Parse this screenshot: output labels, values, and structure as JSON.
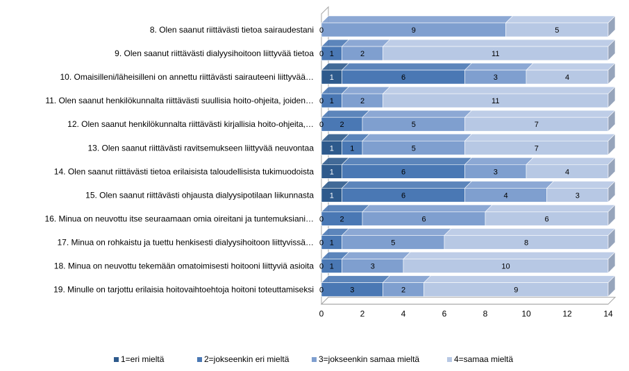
{
  "chart_data": {
    "type": "bar",
    "orientation": "horizontal",
    "stacked": true,
    "three_d": true,
    "categories": [
      "8. Olen saanut riittävästi tietoa sairaudestani",
      "9. Olen saanut riittävästi dialyysihoitoon liittyvää tietoa",
      "10. Omaisilleni/läheisilleni on annettu riittävästi sairauteeni liittyvää…",
      "11. Olen saanut henkilökunnalta riittävästi suullisia hoito-ohjeita, joiden…",
      "12. Olen saanut henkilökunnalta riittävästi kirjallisia hoito-ohjeita,…",
      "13. Olen saanut riittävästi ravitsemukseen liittyvää neuvontaa",
      "14. Olen saanut riittävästi tietoa erilaisista taloudellisista tukimuodoista",
      "15. Olen saanut riittävästi ohjausta dialyysipotilaan liikunnasta",
      "16. Minua on neuvottu itse seuraamaan omia oireitani ja tuntemuksiani…",
      "17. Minua on rohkaistu ja tuettu henkisesti dialyysihoitoon liittyvissä…",
      "18. Minua on neuvottu tekemään omatoimisesti hoitooni liittyviä asioita",
      "19. Minulle on tarjottu erilaisia hoitovaihtoehtoja hoitoni toteuttamiseksi"
    ],
    "series": [
      {
        "name": "1=eri mieltä",
        "color": "#2e5a8c",
        "values": [
          0,
          0,
          1,
          0,
          0,
          1,
          1,
          1,
          0,
          0,
          0,
          0
        ]
      },
      {
        "name": "2=jokseenkin eri mieltä",
        "color": "#4a78b4",
        "values": [
          0,
          1,
          6,
          1,
          2,
          1,
          6,
          6,
          2,
          1,
          1,
          3
        ]
      },
      {
        "name": "3=jokseenkin samaa mieltä",
        "color": "#7f9fcf",
        "values": [
          9,
          2,
          3,
          2,
          5,
          5,
          3,
          4,
          6,
          5,
          3,
          2
        ]
      },
      {
        "name": "4=samaa mieltä",
        "color": "#b7c8e4",
        "values": [
          5,
          11,
          4,
          11,
          7,
          7,
          4,
          3,
          6,
          8,
          10,
          9
        ]
      }
    ],
    "zero_labels": [
      "0",
      "0",
      "",
      "0",
      "0",
      "",
      "",
      "",
      "0",
      "0",
      "0",
      "0"
    ],
    "x_ticks": [
      "0",
      "2",
      "4",
      "6",
      "8",
      "10",
      "12",
      "14"
    ],
    "xlim": [
      0,
      14
    ],
    "grid": false,
    "legend_position": "bottom",
    "title": "",
    "xlabel": "",
    "ylabel": ""
  }
}
